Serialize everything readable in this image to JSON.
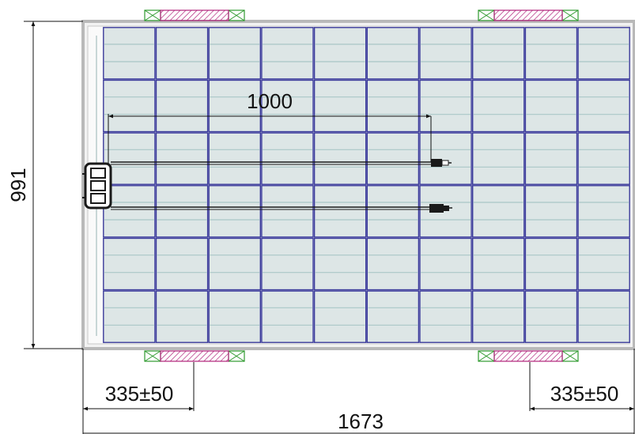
{
  "dimensions": {
    "height_label": "991",
    "length_label": "1673",
    "cable_length_label": "1000",
    "clamp_offset_left_label": "335±50",
    "clamp_offset_right_label": "335±50"
  },
  "module": {
    "cell_rows": 6,
    "cell_columns": 10
  },
  "colors": {
    "frame": "#b9b9b9",
    "cell_fill": "#dde6e6",
    "cell_border": "#3b3b9b",
    "busbar": "#a9c7c7",
    "clamp_hatch": "#b0237a",
    "clamp_cross": "#2e9a2e",
    "cable": "#1a1a1a",
    "dimension_line": "#111111"
  },
  "icons": {
    "junction_box": "junction-box-icon",
    "connector": "mc4-connector-icon",
    "clamp": "mounting-clamp-icon"
  }
}
